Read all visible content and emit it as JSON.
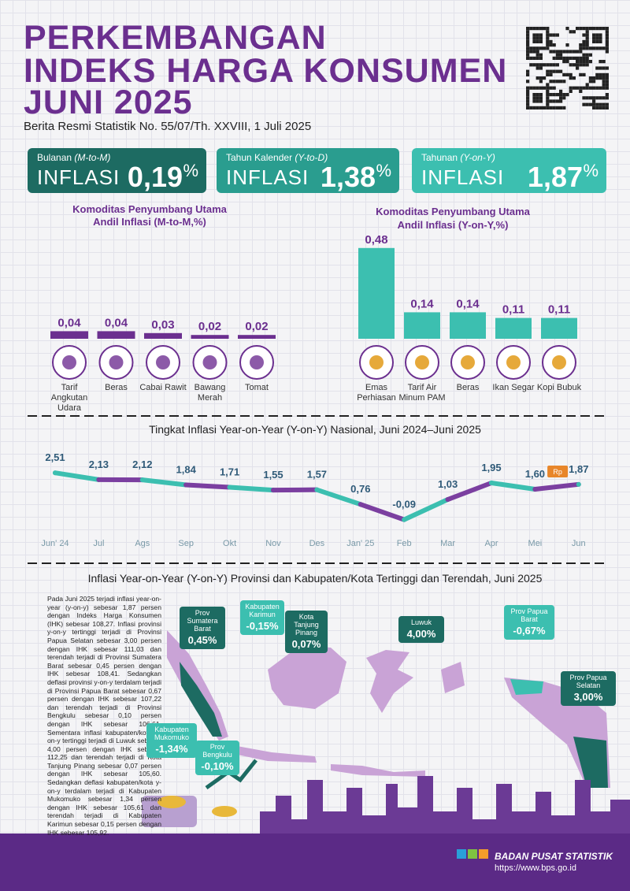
{
  "header": {
    "title_lines": [
      "PERKEMBANGAN",
      "INDEKS HARGA KONSUMEN",
      "JUNI 2025"
    ],
    "subtitle": "Berita Resmi Statistik No. 55/07/Th. XXVIII, 1 Juli 2025"
  },
  "kpis": [
    {
      "label": "Bulanan",
      "label_em": "(M-to-M)",
      "text": "INFLASI",
      "value": "0,19",
      "unit": "%",
      "color": "#1d6b62"
    },
    {
      "label": "Tahun Kalender",
      "label_em": "(Y-to-D)",
      "text": "INFLASI",
      "value": "1,38",
      "unit": "%",
      "color": "#2a9d8f"
    },
    {
      "label": "Tahunan",
      "label_em": "(Y-on-Y)",
      "text": "INFLASI",
      "value": "1,87",
      "unit": "%",
      "color": "#3cbfb0"
    }
  ],
  "chart_data": [
    {
      "type": "bar",
      "title": "Komoditas Penyumbang Utama",
      "subtitle": "Andil Inflasi (M-to-M,%)",
      "categories": [
        "Tarif Angkutan Udara",
        "Beras",
        "Cabai Rawit",
        "Bawang Merah",
        "Tomat"
      ],
      "values": [
        0.04,
        0.04,
        0.03,
        0.02,
        0.02
      ],
      "value_labels": [
        "0,04",
        "0,04",
        "0,03",
        "0,02",
        "0,02"
      ],
      "color": "#6b2f8f",
      "ylim": [
        0,
        0.5
      ]
    },
    {
      "type": "bar",
      "title": "Komoditas Penyumbang Utama",
      "subtitle": "Andil Inflasi (Y-on-Y,%)",
      "categories": [
        "Emas Perhiasan",
        "Tarif Air Minum PAM",
        "Beras",
        "Ikan Segar",
        "Kopi Bubuk"
      ],
      "values": [
        0.48,
        0.14,
        0.14,
        0.11,
        0.11
      ],
      "value_labels": [
        "0,48",
        "0,14",
        "0,14",
        "0,11",
        "0,11"
      ],
      "color": "#3cbfb0",
      "ylim": [
        0,
        0.5
      ]
    },
    {
      "type": "line",
      "title": "Tingkat Inflasi Year-on-Year (Y-on-Y) Nasional, Juni 2024–Juni 2025",
      "categories": [
        "Jun' 24",
        "Jul",
        "Ags",
        "Sep",
        "Okt",
        "Nov",
        "Des",
        "Jan' 25",
        "Feb",
        "Mar",
        "Apr",
        "Mei",
        "Jun"
      ],
      "values": [
        2.51,
        2.13,
        2.12,
        1.84,
        1.71,
        1.55,
        1.57,
        0.76,
        -0.09,
        1.03,
        1.95,
        1.6,
        1.87
      ],
      "value_labels": [
        "2,51",
        "2,13",
        "2,12",
        "1,84",
        "1,71",
        "1,55",
        "1,57",
        "0,76",
        "-0,09",
        "1,03",
        "1,95",
        "1,60",
        "1,87"
      ],
      "colors": [
        "#3cbfb0",
        "#7b3fa0"
      ],
      "ylim": [
        -0.5,
        3
      ],
      "marker_label": "Rp"
    }
  ],
  "map": {
    "title": "Inflasi Year-on-Year (Y-on-Y) Provinsi dan Kabupaten/Kota Tertinggi dan Terendah, Juni 2025",
    "description": "Pada Juni 2025 terjadi inflasi year-on-year (y-on-y) sebesar 1,87 persen dengan Indeks Harga Konsumen (IHK) sebesar 108,27. Inflasi provinsi y-on-y tertinggi terjadi di Provinsi Papua Selatan sebesar 3,00 persen dengan IHK sebesar 111,03 dan terendah terjadi di Provinsi Sumatera Barat sebesar 0,45 persen dengan IHK sebesar 108,41. Sedangkan deflasi provinsi y-on-y terdalam terjadi di Provinsi Papua Barat sebesar 0,67 persen dengan IHK sebesar 107,22 dan terendah terjadi di Provinsi Bengkulu sebesar 0,10 persen dengan IHK sebesar 106,61. Sementara inflasi kabupaten/kota y-on-y tertinggi terjadi di Luwuk sebesar 4,00 persen dengan IHK sebesar 112,25 dan terendah terjadi di Kota Tanjung Pinang sebesar 0,07 persen dengan IHK sebesar 105,60. Sedangkan deflasi kabupaten/kota y-on-y terdalam terjadi di Kabupaten Mukomuko sebesar 1,34 persen dengan IHK sebesar 105,61 dan terendah terjadi di Kabupaten Karimun sebesar 0,15 persen dengan IHK sebesar 105,92.",
    "callouts": [
      {
        "label": "Prov Sumatera Barat",
        "value": "0,45%",
        "color": "#1d6b62"
      },
      {
        "label": "Kabupaten Karimun",
        "value": "-0,15%",
        "color": "#3cbfb0"
      },
      {
        "label": "Kota Tanjung Pinang",
        "value": "0,07%",
        "color": "#1d6b62"
      },
      {
        "label": "Luwuk",
        "value": "4,00%",
        "color": "#1d6b62"
      },
      {
        "label": "Prov Papua Barat",
        "value": "-0,67%",
        "color": "#3cbfb0"
      },
      {
        "label": "Prov Papua Selatan",
        "value": "3,00%",
        "color": "#1d6b62"
      },
      {
        "label": "Kabupaten Mukomuko",
        "value": "-1,34%",
        "color": "#3cbfb0"
      },
      {
        "label": "Prov Bengkulu",
        "value": "-0,10%",
        "color": "#3cbfb0"
      }
    ]
  },
  "footer": {
    "org": "BADAN PUSAT STATISTIK",
    "url": "https://www.bps.go.id"
  }
}
